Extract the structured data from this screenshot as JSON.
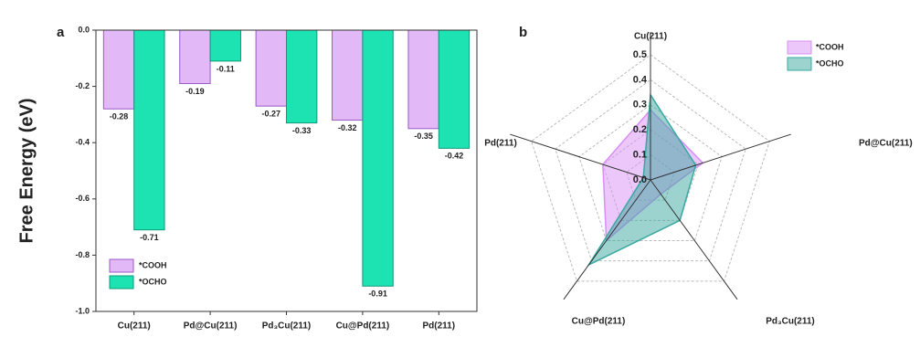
{
  "chart_data": [
    {
      "type": "bar",
      "panel_label": "a",
      "ylabel": "Free Energy (eV)",
      "categories": [
        "Cu(211)",
        "Pd@Cu(211)",
        "Pd₃Cu(211)",
        "Cu@Pd(211)",
        "Pd(211)"
      ],
      "series": [
        {
          "name": "*COOH",
          "color": "#e2b8f7",
          "values": [
            -0.28,
            -0.19,
            -0.27,
            -0.32,
            -0.35
          ]
        },
        {
          "name": "*OCHO",
          "color": "#1de3b2",
          "values": [
            -0.71,
            -0.11,
            -0.33,
            -0.91,
            -0.42
          ]
        }
      ],
      "ylim": [
        0,
        -1.0
      ],
      "yticks": [
        {
          "value": 0,
          "label": "0.0"
        },
        -0.2,
        -0.4,
        -0.6,
        -0.8,
        {
          "value": -1.0,
          "label": "-1.0"
        }
      ],
      "legend": "lower left"
    },
    {
      "type": "radar",
      "panel_label": "b",
      "axes": [
        "Cu(211)",
        "Pd@Cu(211)",
        "Pd₃Cu(211)",
        "Cu@Pd(211)",
        "Pd(211)"
      ],
      "series": [
        {
          "name": "*COOH",
          "color": "#d88ff5",
          "values": [
            0.28,
            0.22,
            0.07,
            0.3,
            0.2
          ]
        },
        {
          "name": "*OCHO",
          "color": "#3aa8a0",
          "values": [
            0.34,
            0.19,
            0.2,
            0.42,
            0.03
          ]
        }
      ],
      "rlim": [
        0,
        0.5
      ],
      "rticks": [
        {
          "value": 0,
          "label": "0.0"
        },
        0.1,
        0.2,
        0.3,
        0.4,
        0.5
      ],
      "legend": "upper right"
    }
  ]
}
